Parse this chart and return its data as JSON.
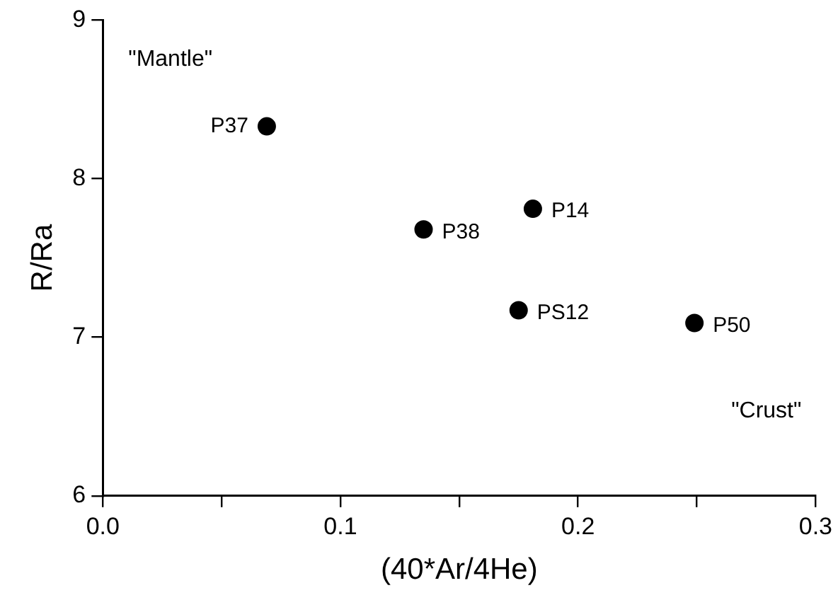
{
  "chart_data": {
    "type": "scatter",
    "xlabel": "(40*Ar/4He)",
    "ylabel": "R/Ra",
    "x": [
      0.069,
      0.135,
      0.181,
      0.175,
      0.249
    ],
    "series": [
      {
        "color": "#000000",
        "values": [
          8.33,
          7.68,
          7.81,
          7.17,
          7.09
        ]
      }
    ],
    "xlim": [
      0,
      0.3
    ],
    "ylim": [
      6,
      9
    ],
    "xticks": [
      {
        "value": 0,
        "label": "0.0"
      },
      {
        "value": 0.05,
        "label": null
      },
      {
        "value": 0.1,
        "label": "0.1"
      },
      {
        "value": 0.15,
        "label": null
      },
      {
        "value": 0.2,
        "label": "0.2"
      },
      {
        "value": 0.25,
        "label": null
      },
      {
        "value": 0.3,
        "label": "0.3"
      }
    ],
    "yticks": [
      6,
      7,
      8,
      9
    ],
    "marker": "circle",
    "grid": false,
    "legend": false,
    "annotations": [
      {
        "text": "P37",
        "x": 0.069,
        "y": 8.33
      },
      {
        "text": "P38",
        "x": 0.135,
        "y": 7.68
      },
      {
        "text": "P14",
        "x": 0.181,
        "y": 7.81
      },
      {
        "text": "PS12",
        "x": 0.175,
        "y": 7.17
      },
      {
        "text": "P50",
        "x": 0.249,
        "y": 7.09
      },
      "\"Mantle\"",
      "\"Crust\""
    ]
  }
}
